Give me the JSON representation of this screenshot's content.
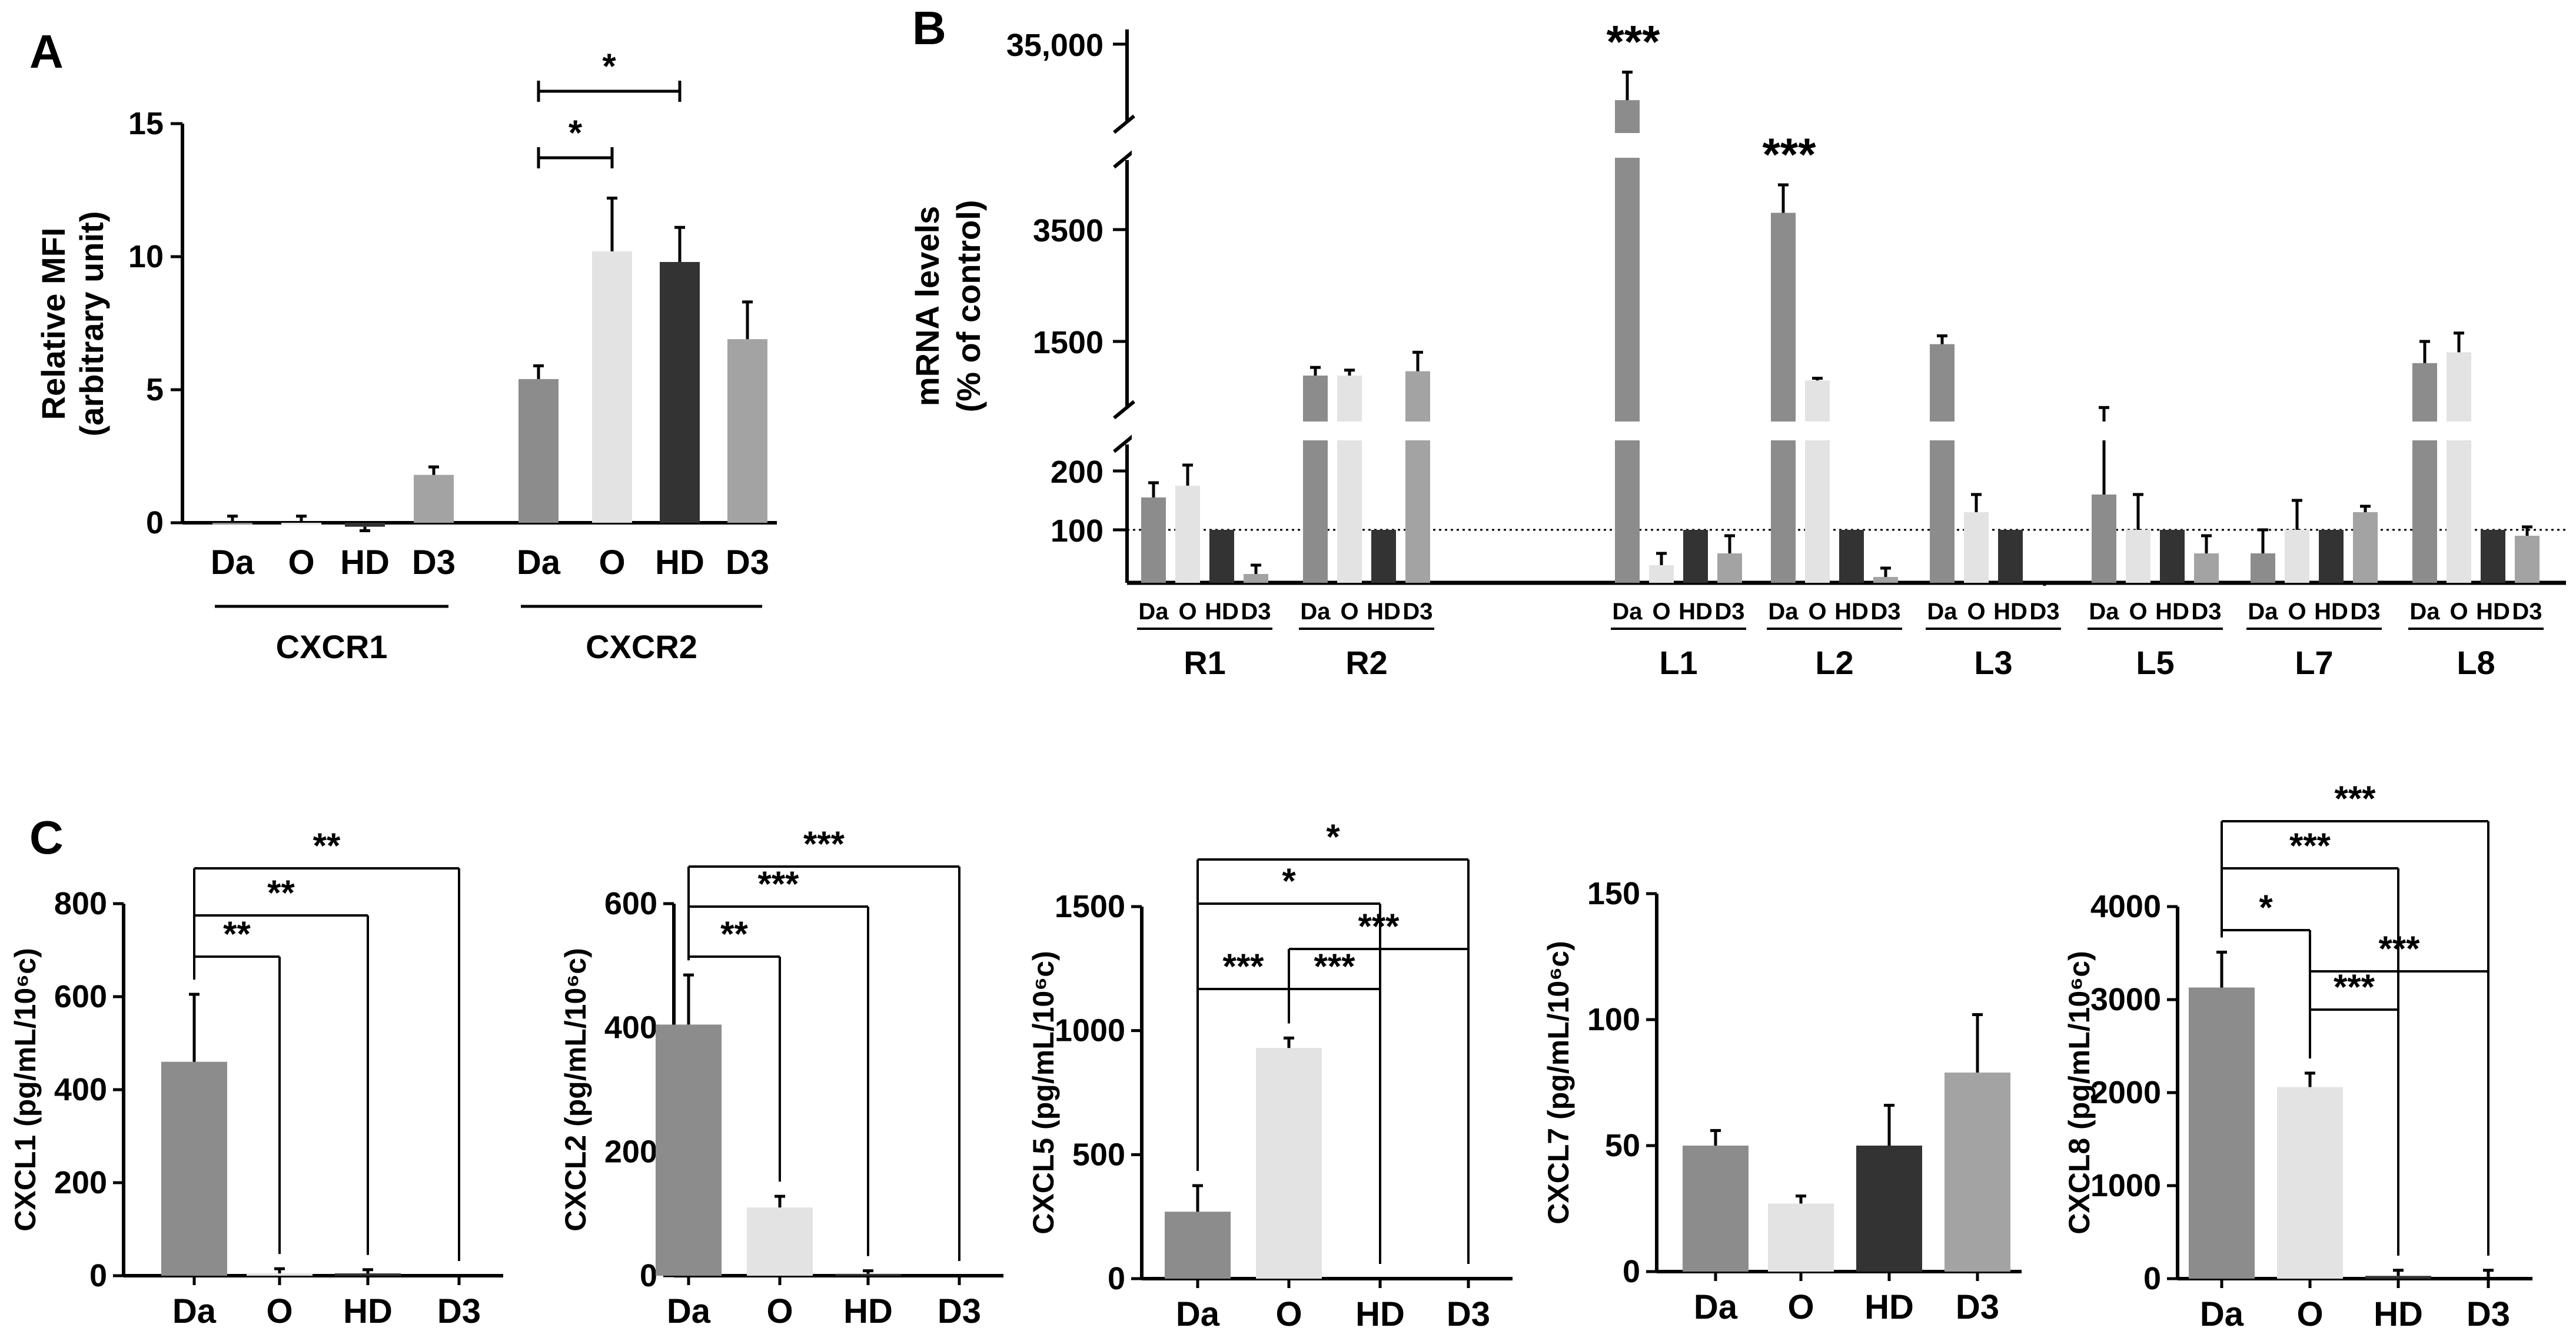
{
  "colors": {
    "Da": "#8c8c8c",
    "O": "#e3e3e3",
    "HD": "#333333",
    "D3": "#a3a3a3",
    "axis": "#000000"
  },
  "chart_data": [
    {
      "panel": "A",
      "type": "bar",
      "ylabel": [
        "Relative MFI",
        "(arbitrary unit)"
      ],
      "ylim": [
        0,
        15
      ],
      "yticks": [
        0,
        5,
        10,
        15
      ],
      "groups": [
        {
          "name": "CXCR1",
          "categories": [
            "Da",
            "O",
            "HD",
            "D3"
          ],
          "values": [
            0.0,
            0.0,
            -0.15,
            1.8
          ],
          "errors": [
            0.25,
            0.25,
            0.15,
            0.3
          ]
        },
        {
          "name": "CXCR2",
          "categories": [
            "Da",
            "O",
            "HD",
            "D3"
          ],
          "values": [
            5.4,
            10.2,
            9.8,
            6.9
          ],
          "errors": [
            0.5,
            2.0,
            1.3,
            1.4
          ]
        }
      ],
      "significance": [
        {
          "group": "CXCR2",
          "from": "Da",
          "to": "O",
          "label": "*"
        },
        {
          "group": "CXCR2",
          "from": "Da",
          "to": "HD",
          "label": "*"
        }
      ]
    },
    {
      "panel": "B",
      "type": "bar",
      "ylabel": [
        "mRNA levels",
        "(% of control)"
      ],
      "axis_breaks": true,
      "yticks": [
        100,
        200,
        1500,
        3500,
        35000
      ],
      "ytick_labels": [
        "100",
        "200",
        "1500",
        "3500",
        "35,000"
      ],
      "reference_line": 100,
      "categories": [
        "Da",
        "O",
        "HD",
        "D3"
      ],
      "groups": [
        {
          "name": "R1",
          "values": [
            155,
            175,
            100,
            25
          ],
          "errors": [
            25,
            35,
            0,
            15
          ]
        },
        {
          "name": "R2",
          "values": [
            870,
            870,
            100,
            950
          ],
          "errors": [
            150,
            100,
            0,
            350
          ]
        },
        {
          "name": "L1",
          "values": [
            32000,
            40,
            100,
            60
          ],
          "errors": [
            1500,
            20,
            0,
            30
          ]
        },
        {
          "name": "L2",
          "values": [
            3800,
            780,
            100,
            20
          ],
          "errors": [
            500,
            40,
            0,
            15
          ]
        },
        {
          "name": "L3",
          "values": [
            1450,
            130,
            100,
            5
          ],
          "errors": [
            150,
            30,
            0,
            5
          ]
        },
        {
          "name": "L5",
          "values": [
            160,
            100,
            100,
            60
          ],
          "errors": [
            120,
            60,
            0,
            30
          ]
        },
        {
          "name": "L7",
          "values": [
            60,
            100,
            100,
            130
          ],
          "errors": [
            40,
            50,
            0,
            10
          ]
        },
        {
          "name": "L8",
          "values": [
            1100,
            1300,
            100,
            90
          ],
          "errors": [
            400,
            350,
            0,
            15
          ]
        }
      ],
      "significance": [
        {
          "group": "L1",
          "label": "***"
        },
        {
          "group": "L2",
          "label": "***"
        }
      ]
    },
    {
      "panel": "C",
      "type": "bar",
      "ylabel": "CXCL1 (pg/mL/10⁶c)",
      "categories": [
        "Da",
        "O",
        "HD",
        "D3"
      ],
      "values": [
        460,
        5,
        5,
        0
      ],
      "errors": [
        145,
        10,
        8,
        0
      ],
      "ylim": [
        0,
        800
      ],
      "yticks": [
        0,
        200,
        400,
        600,
        800
      ],
      "significance": [
        {
          "from": "Da",
          "to": "O",
          "label": "**"
        },
        {
          "from": "Da",
          "to": "HD",
          "label": "**"
        },
        {
          "from": "Da",
          "to": "D3",
          "label": "**"
        }
      ]
    },
    {
      "type": "bar",
      "ylabel": "CXCL2 (pg/mL/10⁶c)",
      "categories": [
        "Da",
        "O",
        "HD",
        "D3"
      ],
      "values": [
        405,
        110,
        3,
        0
      ],
      "errors": [
        80,
        18,
        5,
        0
      ],
      "ylim": [
        0,
        600
      ],
      "yticks": [
        0,
        200,
        400,
        600
      ],
      "significance": [
        {
          "from": "Da",
          "to": "O",
          "label": "**"
        },
        {
          "from": "Da",
          "to": "HD",
          "label": "***"
        },
        {
          "from": "Da",
          "to": "D3",
          "label": "***"
        }
      ]
    },
    {
      "type": "bar",
      "ylabel": "CXCL5 (pg/mL/10⁶c)",
      "categories": [
        "Da",
        "O",
        "HD",
        "D3"
      ],
      "values": [
        270,
        930,
        0,
        0
      ],
      "errors": [
        105,
        40,
        0,
        0
      ],
      "ylim": [
        0,
        1500
      ],
      "yticks": [
        0,
        500,
        1000,
        1500
      ],
      "significance": [
        {
          "from": "Da",
          "to": "O",
          "label": "***"
        },
        {
          "from": "O",
          "to": "HD",
          "label": "***"
        },
        {
          "from": "O",
          "to": "D3",
          "label": "***"
        },
        {
          "from": "Da",
          "to": "HD",
          "label": "*"
        },
        {
          "from": "Da",
          "to": "D3",
          "label": "*"
        }
      ]
    },
    {
      "type": "bar",
      "ylabel": "CXCL7 (pg/mL/10⁶c)",
      "categories": [
        "Da",
        "O",
        "HD",
        "D3"
      ],
      "values": [
        50,
        27,
        50,
        79
      ],
      "errors": [
        6,
        3,
        16,
        23
      ],
      "ylim": [
        0,
        150
      ],
      "yticks": [
        0,
        50,
        100,
        150
      ],
      "significance": []
    },
    {
      "type": "bar",
      "ylabel": "CXCL8 (pg/mL/10⁶c)",
      "categories": [
        "Da",
        "O",
        "HD",
        "D3"
      ],
      "values": [
        3130,
        2060,
        30,
        10
      ],
      "errors": [
        380,
        150,
        60,
        80
      ],
      "ylim": [
        0,
        4000
      ],
      "yticks": [
        0,
        1000,
        2000,
        3000,
        4000
      ],
      "significance": [
        {
          "from": "Da",
          "to": "O",
          "label": "*"
        },
        {
          "from": "O",
          "to": "HD",
          "label": "***"
        },
        {
          "from": "Da",
          "to": "HD",
          "label": "***"
        },
        {
          "from": "O",
          "to": "D3",
          "label": "***"
        },
        {
          "from": "Da",
          "to": "D3",
          "label": "***"
        }
      ]
    }
  ],
  "panel_labels": [
    "A",
    "B",
    "C"
  ]
}
